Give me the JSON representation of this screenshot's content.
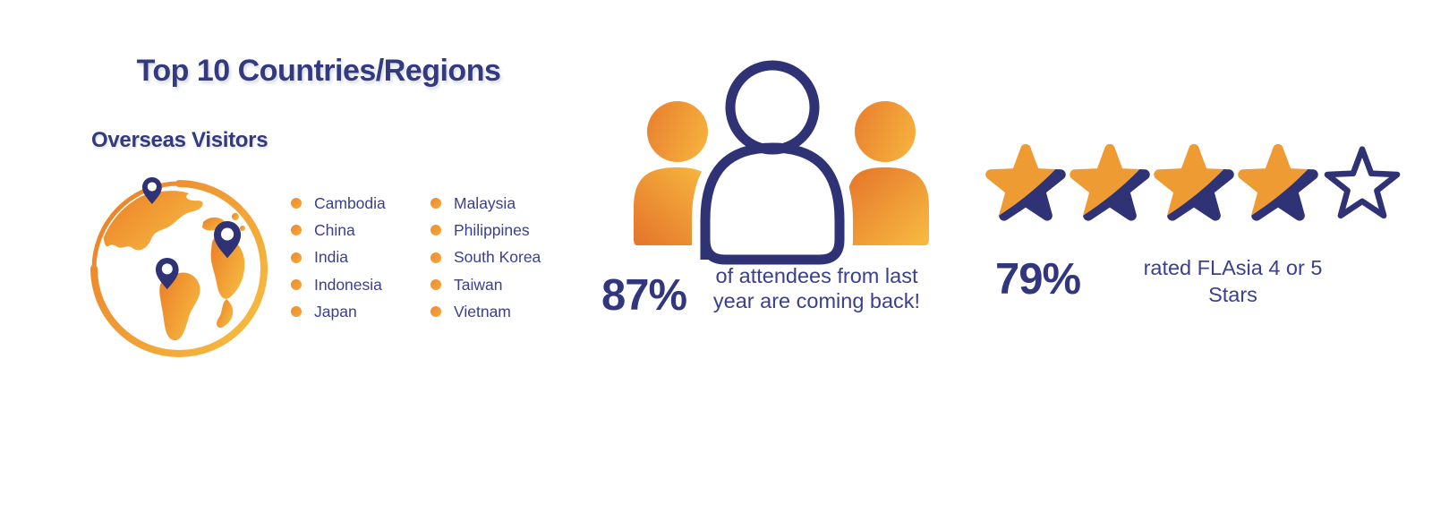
{
  "colors": {
    "navy": "#2F3376",
    "text_navy": "#3A3F8E",
    "heading_navy": "#333A80",
    "orange": "#EE9B33",
    "orange_dark": "#E4732A",
    "orange_light": "#F8BC41"
  },
  "left": {
    "title": "Top 10 Countries/Regions",
    "subtitle": "Overseas Visitors",
    "globe_icon": "globe-with-location-pins",
    "countries": {
      "col1": [
        "Cambodia",
        "China",
        "India",
        "Indonesia",
        "Japan"
      ],
      "col2": [
        "Malaysia",
        "Philippines",
        "South Korea",
        "Taiwan",
        "Vietnam"
      ]
    }
  },
  "center": {
    "icon": "people-group",
    "stat": "87%",
    "caption_lines": [
      "of attendees from last",
      "year are coming back!"
    ]
  },
  "right": {
    "stat": "79%",
    "caption_lines": [
      "rated FLAsia 4 or 5",
      "Stars"
    ],
    "rating": {
      "filled": 4,
      "total": 5
    }
  }
}
